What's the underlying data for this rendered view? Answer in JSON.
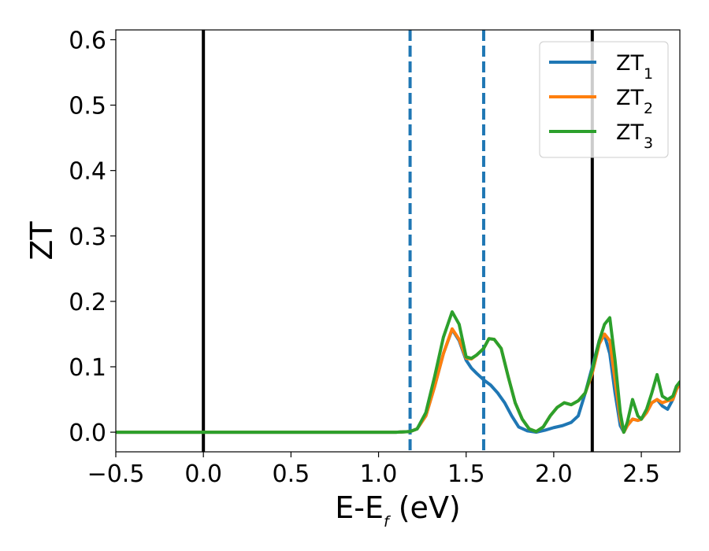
{
  "chart_data": {
    "type": "line",
    "xlabel": "E-E",
    "xlabel_sub": "f",
    "xlabel_unit": " (eV)",
    "ylabel": "ZT",
    "xlim": [
      -0.5,
      2.72
    ],
    "ylim": [
      -0.03,
      0.615
    ],
    "xticks": [
      -0.5,
      0.0,
      0.5,
      1.0,
      1.5,
      2.0,
      2.5
    ],
    "xtick_labels": [
      "−0.5",
      "0.0",
      "0.5",
      "1.0",
      "1.5",
      "2.0",
      "2.5"
    ],
    "yticks": [
      0.0,
      0.1,
      0.2,
      0.3,
      0.4,
      0.5,
      0.6
    ],
    "ytick_labels": [
      "0.0",
      "0.1",
      "0.2",
      "0.3",
      "0.4",
      "0.5",
      "0.6"
    ],
    "grid": false,
    "legend_position": "top-right",
    "vlines": [
      {
        "x": 0.0,
        "style": "solid",
        "color": "#000000"
      },
      {
        "x": 2.22,
        "style": "solid",
        "color": "#000000"
      },
      {
        "x": 1.18,
        "style": "dashed",
        "color": "#1f77b4"
      },
      {
        "x": 1.6,
        "style": "dashed",
        "color": "#1f77b4"
      }
    ],
    "series": [
      {
        "name": "ZT",
        "name_sub": "1",
        "color": "#1f77b4",
        "x": [
          -0.5,
          1.1,
          1.18,
          1.22,
          1.27,
          1.32,
          1.37,
          1.42,
          1.46,
          1.5,
          1.53,
          1.56,
          1.6,
          1.64,
          1.68,
          1.72,
          1.76,
          1.8,
          1.85,
          1.9,
          1.95,
          2.0,
          2.05,
          2.1,
          2.14,
          2.18,
          2.22,
          2.26,
          2.29,
          2.32,
          2.35,
          2.38,
          2.4,
          2.42,
          2.45,
          2.48,
          2.5,
          2.53,
          2.56,
          2.59,
          2.62,
          2.65,
          2.68,
          2.7,
          2.72
        ],
        "y": [
          0.0,
          0.0,
          0.001,
          0.005,
          0.025,
          0.07,
          0.12,
          0.157,
          0.14,
          0.11,
          0.098,
          0.09,
          0.08,
          0.072,
          0.06,
          0.045,
          0.025,
          0.008,
          0.002,
          0.0,
          0.003,
          0.007,
          0.01,
          0.015,
          0.025,
          0.06,
          0.1,
          0.14,
          0.148,
          0.12,
          0.06,
          0.01,
          0.0,
          0.01,
          0.02,
          0.018,
          0.02,
          0.03,
          0.045,
          0.05,
          0.04,
          0.035,
          0.05,
          0.065,
          0.075
        ]
      },
      {
        "name": "ZT",
        "name_sub": "2",
        "color": "#ff7f0e",
        "x": [
          -0.5,
          1.1,
          1.18,
          1.22,
          1.27,
          1.32,
          1.37,
          1.42,
          1.46,
          1.5,
          1.53,
          1.56,
          1.6,
          1.63,
          1.66,
          1.7,
          1.74,
          1.78,
          1.82,
          1.86,
          1.9,
          1.94,
          1.98,
          2.02,
          2.06,
          2.1,
          2.14,
          2.18,
          2.22,
          2.26,
          2.29,
          2.32,
          2.35,
          2.38,
          2.4,
          2.42,
          2.45,
          2.48,
          2.5,
          2.53,
          2.56,
          2.59,
          2.62,
          2.65,
          2.68,
          2.7,
          2.72
        ],
        "y": [
          0.0,
          0.0,
          0.001,
          0.005,
          0.025,
          0.07,
          0.12,
          0.158,
          0.142,
          0.113,
          0.112,
          0.118,
          0.128,
          0.143,
          0.142,
          0.128,
          0.085,
          0.045,
          0.02,
          0.005,
          0.001,
          0.008,
          0.025,
          0.038,
          0.045,
          0.042,
          0.048,
          0.06,
          0.09,
          0.135,
          0.15,
          0.14,
          0.08,
          0.02,
          0.0,
          0.01,
          0.02,
          0.018,
          0.02,
          0.03,
          0.045,
          0.05,
          0.045,
          0.048,
          0.05,
          0.065,
          0.075
        ]
      },
      {
        "name": "ZT",
        "name_sub": "3",
        "color": "#2ca02c",
        "x": [
          -0.5,
          1.1,
          1.18,
          1.22,
          1.27,
          1.32,
          1.37,
          1.42,
          1.46,
          1.5,
          1.53,
          1.56,
          1.6,
          1.63,
          1.66,
          1.7,
          1.74,
          1.78,
          1.82,
          1.86,
          1.9,
          1.94,
          1.98,
          2.02,
          2.06,
          2.1,
          2.14,
          2.18,
          2.22,
          2.26,
          2.29,
          2.32,
          2.35,
          2.38,
          2.4,
          2.42,
          2.45,
          2.48,
          2.5,
          2.53,
          2.56,
          2.59,
          2.62,
          2.65,
          2.68,
          2.7,
          2.72
        ],
        "y": [
          0.0,
          0.0,
          0.001,
          0.005,
          0.03,
          0.085,
          0.145,
          0.184,
          0.165,
          0.115,
          0.113,
          0.118,
          0.128,
          0.143,
          0.142,
          0.128,
          0.085,
          0.045,
          0.02,
          0.005,
          0.001,
          0.008,
          0.025,
          0.038,
          0.045,
          0.042,
          0.048,
          0.06,
          0.095,
          0.14,
          0.165,
          0.175,
          0.11,
          0.03,
          0.0,
          0.015,
          0.05,
          0.025,
          0.02,
          0.035,
          0.06,
          0.088,
          0.055,
          0.05,
          0.055,
          0.07,
          0.077
        ]
      }
    ]
  }
}
